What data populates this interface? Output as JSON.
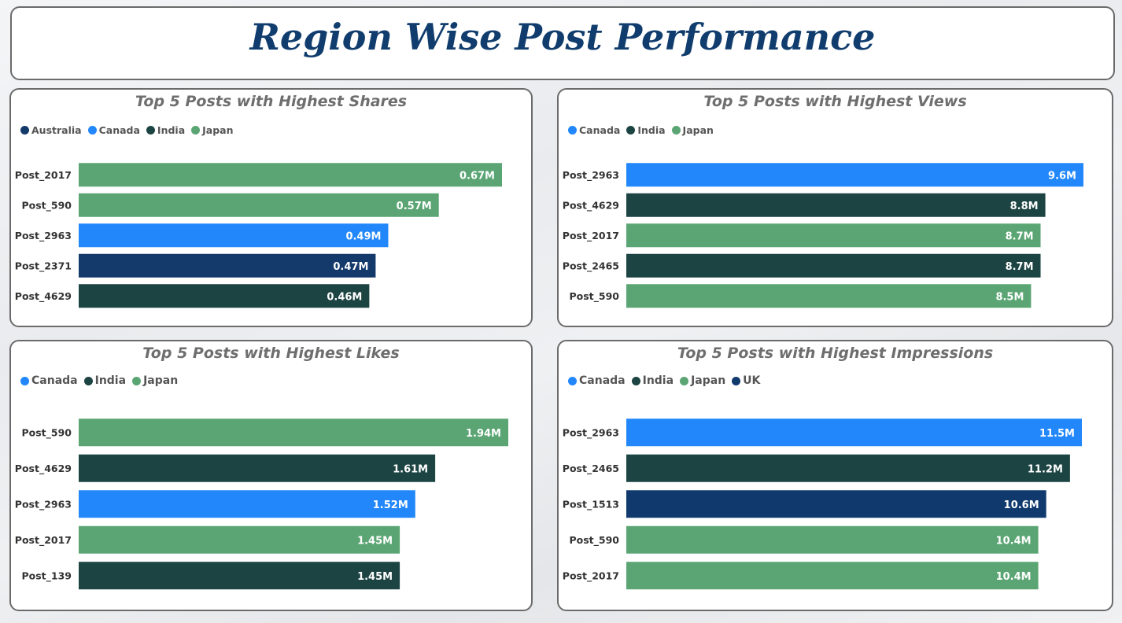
{
  "page": {
    "title": "Region Wise Post Performance"
  },
  "colors": {
    "Australia": "#143a6c",
    "Canada": "#2187fb",
    "India": "#1c4442",
    "Japan": "#5aa573",
    "UK": "#103a6d"
  },
  "chart_data": [
    {
      "id": "shares",
      "type": "bar",
      "orientation": "horizontal",
      "title": "Top 5 Posts with Highest Shares",
      "legend": [
        "Australia",
        "Canada",
        "India",
        "Japan"
      ],
      "categories": [
        "Post_2017",
        "Post_590",
        "Post_2963",
        "Post_2371",
        "Post_4629"
      ],
      "regions": [
        "Japan",
        "Japan",
        "Canada",
        "Australia",
        "India"
      ],
      "values": [
        0.67,
        0.57,
        0.49,
        0.47,
        0.46
      ],
      "value_labels": [
        "0.67M",
        "0.57M",
        "0.49M",
        "0.47M",
        "0.46M"
      ],
      "unit": "M",
      "xlim": [
        0,
        0.67
      ]
    },
    {
      "id": "views",
      "type": "bar",
      "orientation": "horizontal",
      "title": "Top 5 Posts with Highest Views",
      "legend": [
        "Canada",
        "India",
        "Japan"
      ],
      "categories": [
        "Post_2963",
        "Post_4629",
        "Post_2017",
        "Post_2465",
        "Post_590"
      ],
      "regions": [
        "Canada",
        "India",
        "Japan",
        "India",
        "Japan"
      ],
      "values": [
        9.6,
        8.8,
        8.7,
        8.7,
        8.5
      ],
      "value_labels": [
        "9.6M",
        "8.8M",
        "8.7M",
        "8.7M",
        "8.5M"
      ],
      "unit": "M",
      "xlim": [
        0,
        9.6
      ]
    },
    {
      "id": "likes",
      "type": "bar",
      "orientation": "horizontal",
      "title": "Top 5 Posts with Highest Likes",
      "legend": [
        "Canada",
        "India",
        "Japan"
      ],
      "categories": [
        "Post_590",
        "Post_4629",
        "Post_2963",
        "Post_2017",
        "Post_139"
      ],
      "regions": [
        "Japan",
        "India",
        "Canada",
        "Japan",
        "India"
      ],
      "values": [
        1.94,
        1.61,
        1.52,
        1.45,
        1.45
      ],
      "value_labels": [
        "1.94M",
        "1.61M",
        "1.52M",
        "1.45M",
        "1.45M"
      ],
      "unit": "M",
      "xlim": [
        0,
        1.94
      ]
    },
    {
      "id": "impressions",
      "type": "bar",
      "orientation": "horizontal",
      "title": "Top 5 Posts with Highest Impressions",
      "legend": [
        "Canada",
        "India",
        "Japan",
        "UK"
      ],
      "categories": [
        "Post_2963",
        "Post_2465",
        "Post_1513",
        "Post_590",
        "Post_2017"
      ],
      "regions": [
        "Canada",
        "India",
        "UK",
        "Japan",
        "Japan"
      ],
      "values": [
        11.5,
        11.2,
        10.6,
        10.4,
        10.4
      ],
      "value_labels": [
        "11.5M",
        "11.2M",
        "10.6M",
        "10.4M",
        "10.4M"
      ],
      "unit": "M",
      "xlim": [
        0,
        11.5
      ]
    }
  ]
}
